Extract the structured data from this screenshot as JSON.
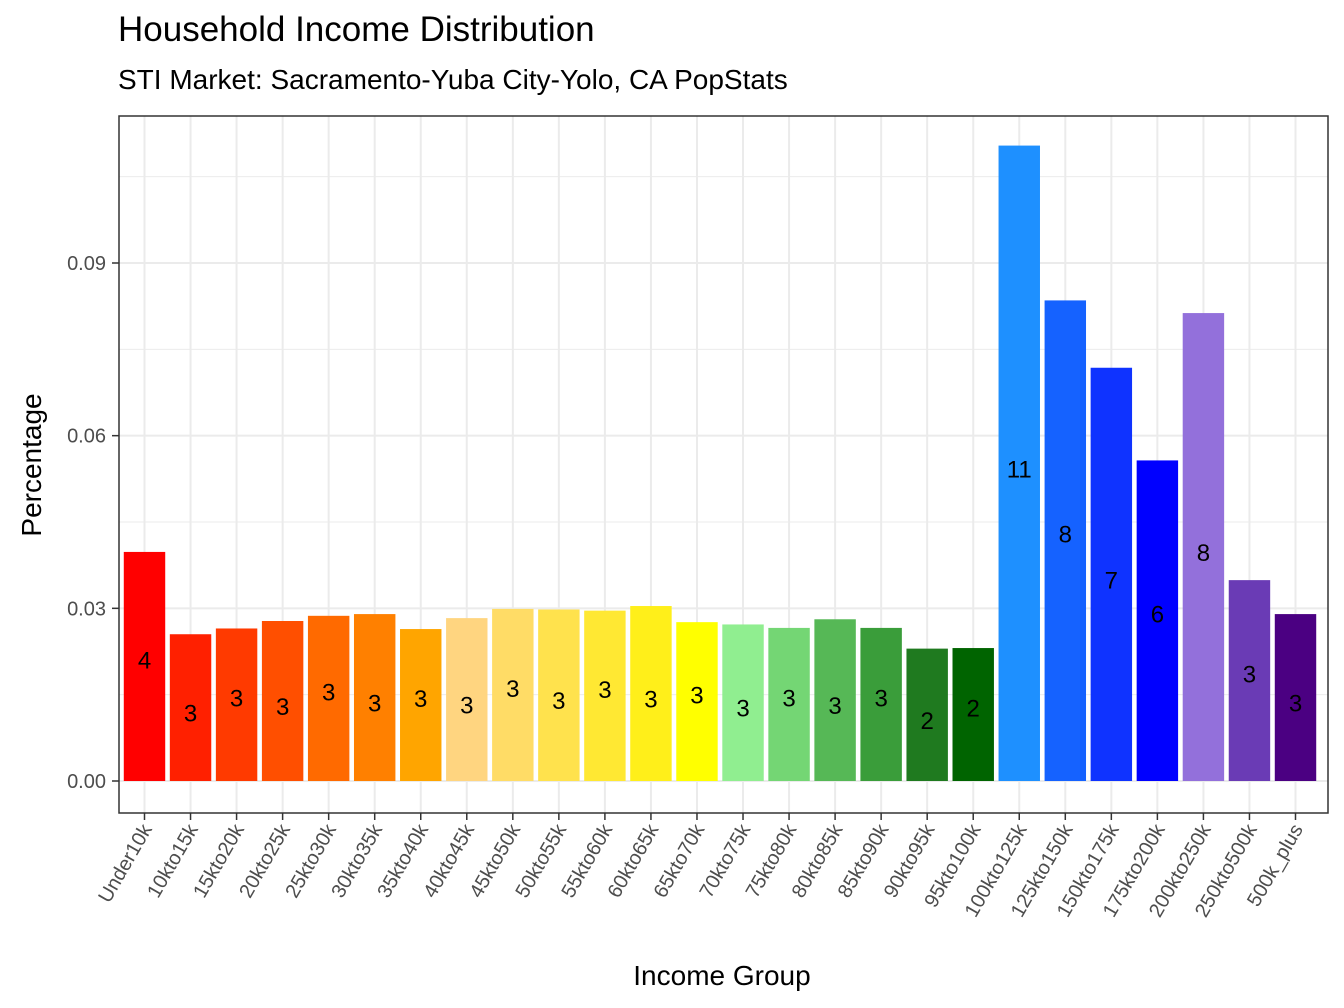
{
  "chart_data": {
    "type": "bar",
    "title": "Household Income Distribution",
    "subtitle": "STI Market: Sacramento-Yuba City-Yolo, CA PopStats",
    "xlabel": "Income Group",
    "ylabel": "Percentage",
    "ylim": [
      -0.006,
      0.116
    ],
    "yticks": [
      0.0,
      0.03,
      0.06,
      0.09
    ],
    "ytick_labels": [
      "0.00",
      "0.03",
      "0.06",
      "0.09"
    ],
    "grid": true,
    "legend": "none",
    "categories": [
      "Under10k",
      "10kto15k",
      "15kto20k",
      "20kto25k",
      "25kto30k",
      "30kto35k",
      "35kto40k",
      "40kto45k",
      "45kto50k",
      "50kto55k",
      "55kto60k",
      "60kto65k",
      "65kto70k",
      "70kto75k",
      "75kto80k",
      "80kto85k",
      "85kto90k",
      "90kto95k",
      "95kto100k",
      "100kto125k",
      "125kto150k",
      "150kto175k",
      "175kto200k",
      "200kto250k",
      "250kto500k",
      "500k_plus"
    ],
    "values": [
      0.0398,
      0.0255,
      0.0265,
      0.0278,
      0.0287,
      0.029,
      0.0264,
      0.0283,
      0.0299,
      0.0298,
      0.0296,
      0.0304,
      0.0276,
      0.0272,
      0.0266,
      0.0281,
      0.0266,
      0.023,
      0.0231,
      0.1104,
      0.0835,
      0.0718,
      0.0557,
      0.0813,
      0.0349,
      0.029
    ],
    "data_labels": [
      "4",
      "3",
      "3",
      "3",
      "3",
      "3",
      "3",
      "3",
      "3",
      "3",
      "3",
      "3",
      "3",
      "3",
      "3",
      "3",
      "3",
      "2",
      "2",
      "11",
      "8",
      "7",
      "6",
      "8",
      "3",
      "3"
    ],
    "colors": [
      "#FF0000",
      "#FF2000",
      "#FF3A00",
      "#FF4F00",
      "#FF6A00",
      "#FF8000",
      "#FFA500",
      "#FFD580",
      "#FFDC66",
      "#FFE24D",
      "#FFE833",
      "#FFEF1A",
      "#FFFF00",
      "#90EE90",
      "#74D674",
      "#56B856",
      "#3A9D3A",
      "#1F7A1F",
      "#006400",
      "#1E90FF",
      "#1562FF",
      "#0F33FF",
      "#0000FF",
      "#9370DB",
      "#6A3BB5",
      "#4B0082"
    ]
  }
}
